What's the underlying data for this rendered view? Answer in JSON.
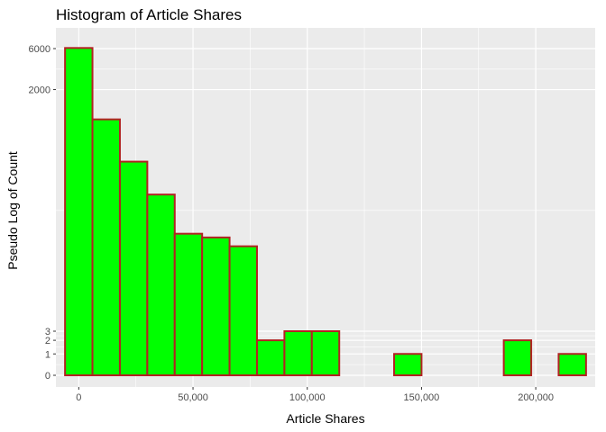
{
  "chart_data": {
    "type": "bar",
    "title": "Histogram of Article Shares",
    "xlabel": "Article Shares",
    "ylabel": "Pseudo Log of Count",
    "y_scale": "pseudo-log",
    "grid": true,
    "colors": {
      "panel": "#ebebeb",
      "grid": "#ffffff",
      "fill": "#00ff00",
      "stroke": "#b22222",
      "tick_text": "#4d4d4d"
    },
    "x_ticks": [
      {
        "value": 0,
        "label": "0"
      },
      {
        "value": 50000,
        "label": "50,000"
      },
      {
        "value": 100000,
        "label": "100,000"
      },
      {
        "value": 150000,
        "label": "150,000"
      },
      {
        "value": 200000,
        "label": "200,000"
      }
    ],
    "y_ticks": [
      {
        "value": 0,
        "label": "0"
      },
      {
        "value": 1,
        "label": "1"
      },
      {
        "value": 2,
        "label": "2"
      },
      {
        "value": 3,
        "label": "3"
      },
      {
        "value": 2000,
        "label": "2000"
      },
      {
        "value": 6000,
        "label": "6000"
      }
    ],
    "xlim": [
      -10000,
      226000
    ],
    "bins": [
      {
        "x0": -6000,
        "x1": 6000,
        "count": 6100
      },
      {
        "x0": 6000,
        "x1": 18000,
        "count": 900
      },
      {
        "x0": 18000,
        "x1": 30000,
        "count": 290
      },
      {
        "x0": 30000,
        "x1": 42000,
        "count": 120
      },
      {
        "x0": 42000,
        "x1": 54000,
        "count": 42
      },
      {
        "x0": 54000,
        "x1": 66000,
        "count": 38
      },
      {
        "x0": 66000,
        "x1": 78000,
        "count": 30
      },
      {
        "x0": 78000,
        "x1": 90000,
        "count": 2
      },
      {
        "x0": 90000,
        "x1": 102000,
        "count": 3
      },
      {
        "x0": 102000,
        "x1": 114000,
        "count": 3
      },
      {
        "x0": 114000,
        "x1": 126000,
        "count": 0
      },
      {
        "x0": 126000,
        "x1": 138000,
        "count": 0
      },
      {
        "x0": 138000,
        "x1": 150000,
        "count": 1
      },
      {
        "x0": 150000,
        "x1": 162000,
        "count": 0
      },
      {
        "x0": 162000,
        "x1": 174000,
        "count": 0
      },
      {
        "x0": 174000,
        "x1": 186000,
        "count": 0
      },
      {
        "x0": 186000,
        "x1": 198000,
        "count": 2
      },
      {
        "x0": 198000,
        "x1": 210000,
        "count": 0
      },
      {
        "x0": 210000,
        "x1": 222000,
        "count": 1
      }
    ]
  }
}
